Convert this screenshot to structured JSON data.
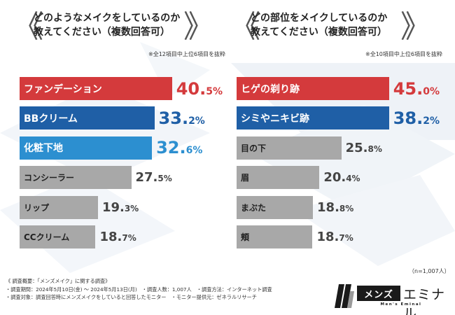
{
  "colors": {
    "red": "#d43a3c",
    "blue": "#1f5fa6",
    "light_blue": "#2c8fd0",
    "gray": "#a8a8a8"
  },
  "chart_data": [
    {
      "type": "bar",
      "orientation": "horizontal",
      "title_line1": "どのようなメイクをしているのか",
      "title_line2": "教えてください（複数回答可）",
      "note": "※全12項目中上位6項目を抜粋",
      "max": 50,
      "items": [
        {
          "label": "ファンデーション",
          "value": 40.5,
          "int": "40.",
          "dec": "5%",
          "style": "red"
        },
        {
          "label": "BBクリーム",
          "value": 33.2,
          "int": "33.",
          "dec": "2%",
          "style": "blue"
        },
        {
          "label": "化粧下地",
          "value": 32.6,
          "int": "32.",
          "dec": "6%",
          "style": "lblue"
        },
        {
          "label": "コンシーラー",
          "value": 27.5,
          "int": "27.",
          "dec": "5%",
          "style": "gray"
        },
        {
          "label": "リップ",
          "value": 19.3,
          "int": "19.",
          "dec": "3%",
          "style": "gray"
        },
        {
          "label": "CCクリーム",
          "value": 18.7,
          "int": "18.",
          "dec": "7%",
          "style": "gray"
        }
      ]
    },
    {
      "type": "bar",
      "orientation": "horizontal",
      "title_line1": "どの部位をメイクしているのか",
      "title_line2": "教えてください（複数回答可）",
      "note": "※全10項目中上位6項目を抜粋",
      "max": 50,
      "items": [
        {
          "label": "ヒゲの剃り跡",
          "value": 45.0,
          "int": "45.",
          "dec": "0%",
          "style": "red"
        },
        {
          "label": "シミやニキビ跡",
          "value": 38.2,
          "int": "38.",
          "dec": "2%",
          "style": "blue"
        },
        {
          "label": "目の下",
          "value": 25.8,
          "int": "25.",
          "dec": "8%",
          "style": "gray"
        },
        {
          "label": "眉",
          "value": 20.4,
          "int": "20.",
          "dec": "4%",
          "style": "gray"
        },
        {
          "label": "まぶた",
          "value": 18.8,
          "int": "18.",
          "dec": "8%",
          "style": "gray"
        },
        {
          "label": "頬",
          "value": 18.7,
          "int": "18.",
          "dec": "7%",
          "style": "gray"
        }
      ]
    }
  ],
  "sample_size": "（n=1,007人）",
  "footer": {
    "line1": "《 調査概要：「メンズメイク」に関する調査》",
    "line2": "・調査期間：2024年5月10日(金) ～ 2024年5月13日(月)　・調査人数：1,007人　・調査方法：インターネット調査",
    "line3": "・調査対象：調査回答時にメンズメイクをしていると回答したモニター　・モニター提供元：ゼネラルリサーチ"
  },
  "logo": {
    "box": "メンズ",
    "name": "エミナル",
    "sub": "Men's Eminal"
  }
}
